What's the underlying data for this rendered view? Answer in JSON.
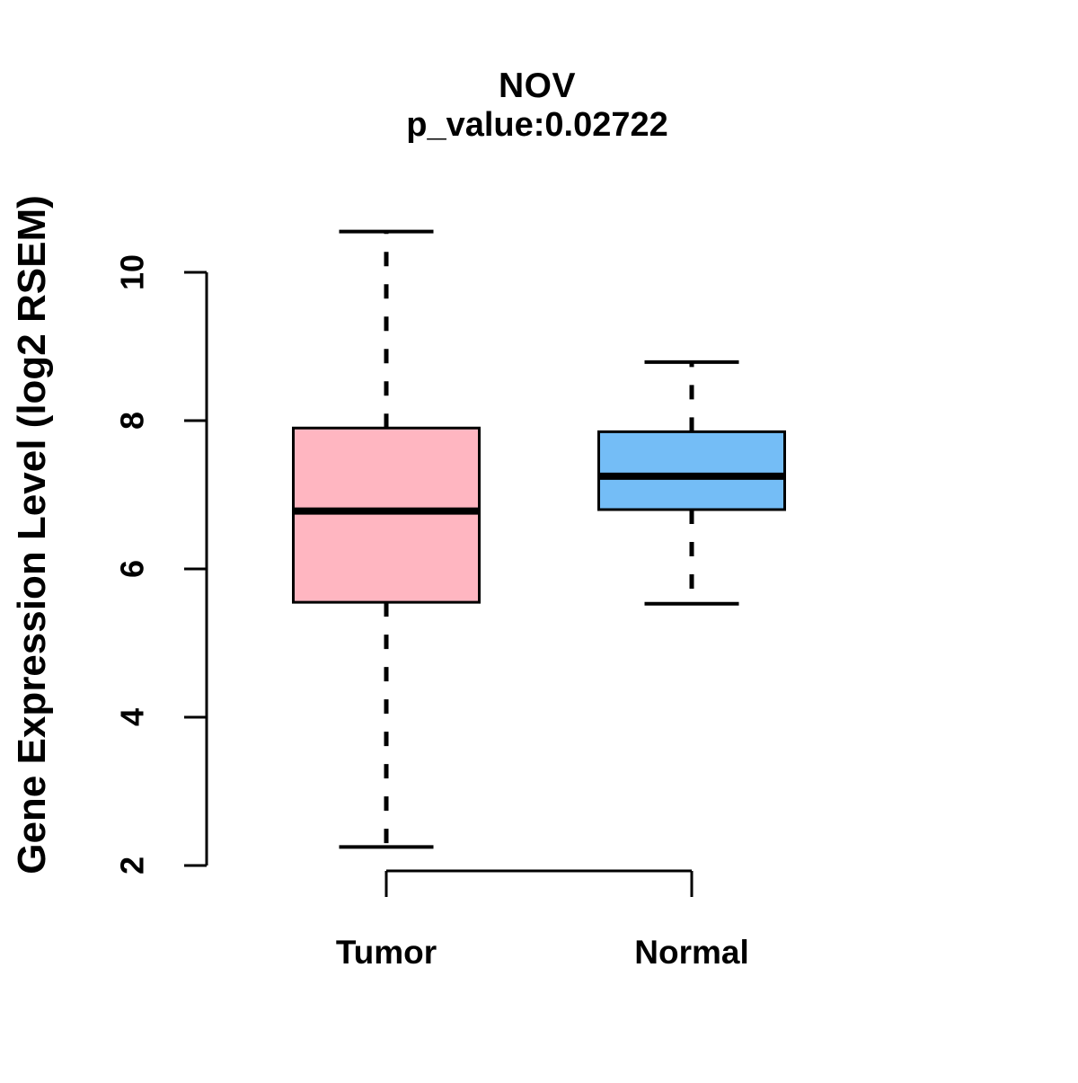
{
  "chart_data": {
    "type": "boxplot",
    "title": "NOV",
    "subtitle": "p_value:0.02722",
    "ylabel": "Gene Expression Level (log2 RSEM)",
    "xlabel": "",
    "categories": [
      "Tumor",
      "Normal"
    ],
    "yticks": [
      "2",
      "4",
      "6",
      "8",
      "10"
    ],
    "ytick_values": [
      2,
      4,
      6,
      8,
      10
    ],
    "ylim": [
      2,
      10
    ],
    "grid": false,
    "legend": "none",
    "series": [
      {
        "name": "Tumor",
        "fill_color": "#FFB6C1",
        "whisker_low": 2.25,
        "q1": 5.55,
        "median": 6.78,
        "q3": 7.9,
        "whisker_high": 10.55
      },
      {
        "name": "Normal",
        "fill_color": "#74BDF6",
        "whisker_low": 5.53,
        "q1": 6.8,
        "median": 7.25,
        "q3": 7.85,
        "whisker_high": 8.79
      }
    ],
    "outline_color": "#000000",
    "background_color": "#FFFFFF"
  }
}
